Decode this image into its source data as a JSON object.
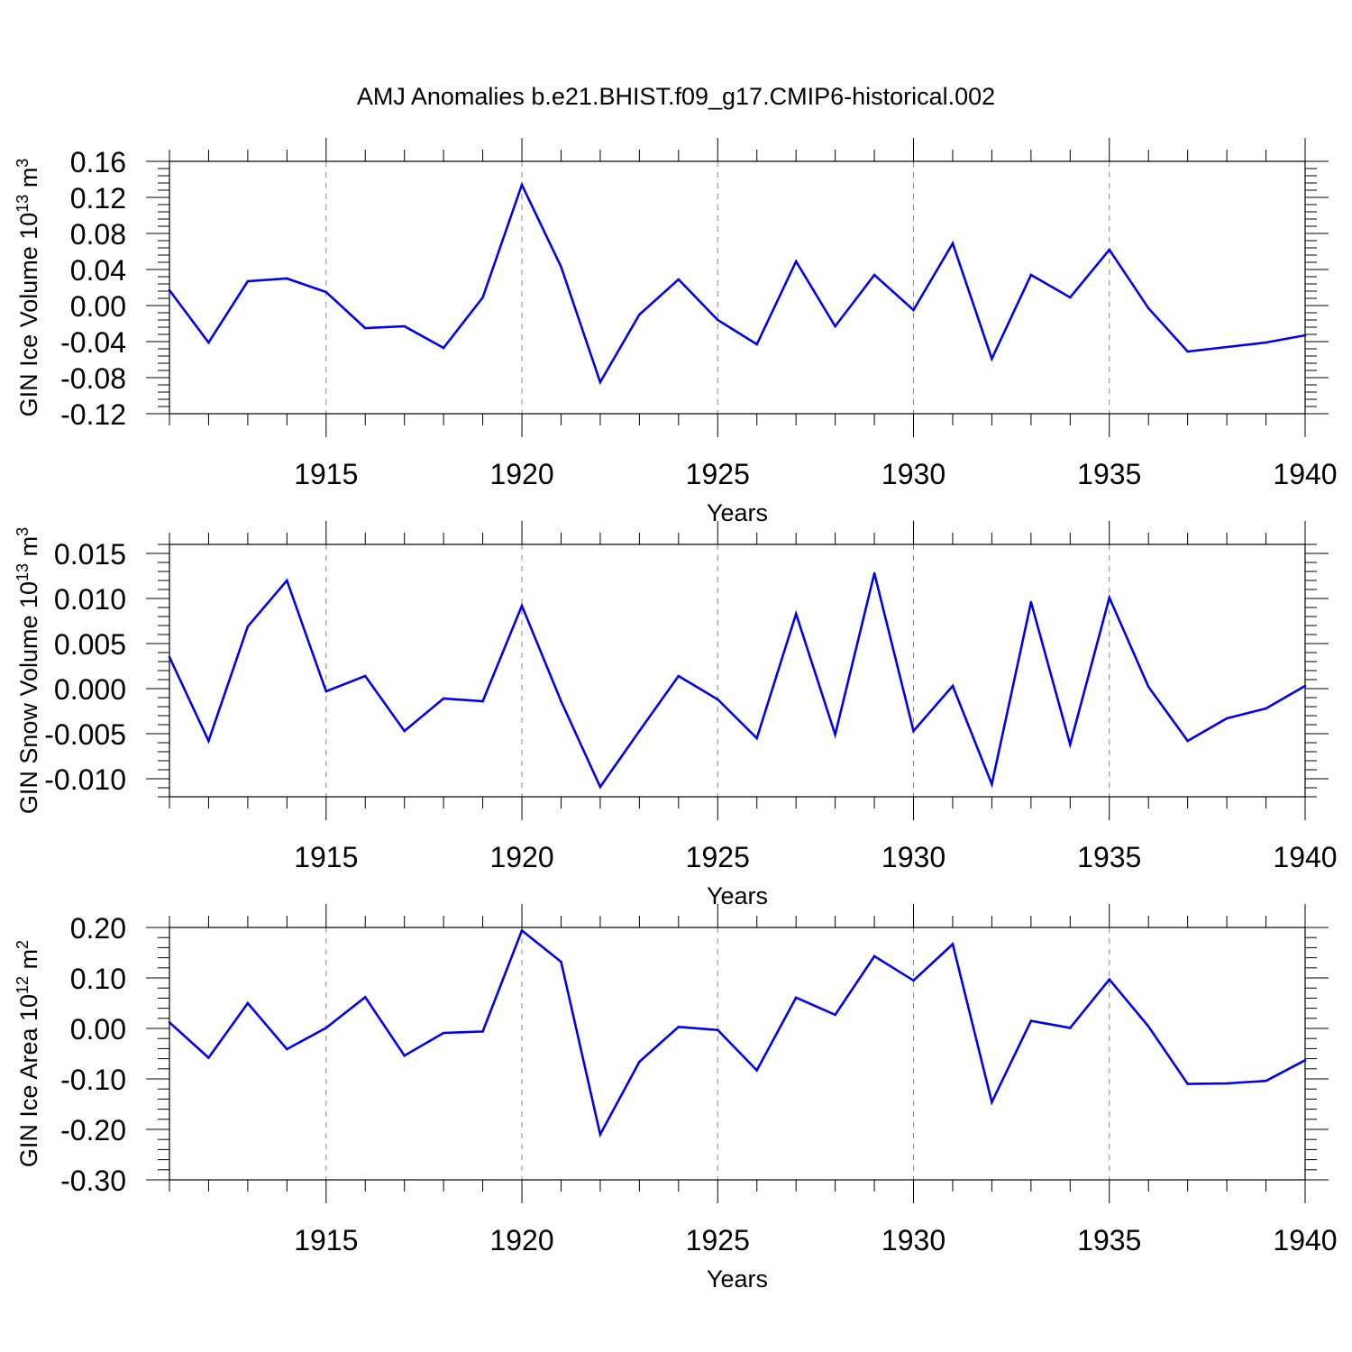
{
  "title": "AMJ Anomalies b.e21.BHIST.f09_g17.CMIP6-historical.002",
  "colors": {
    "line": "#0000ee",
    "axis": "#000000",
    "grid": "#888888"
  },
  "chart_data": [
    {
      "type": "line",
      "name": "ice-volume",
      "ylabel_main": "GIN Ice Volume 10",
      "ylabel_exp": "13",
      "ylabel_unit": " m",
      "ylabel_unit_exp": "3",
      "xlabel": "Years",
      "xlim": [
        1911,
        1940
      ],
      "ylim": [
        -0.12,
        0.16
      ],
      "yticks": [
        -0.12,
        -0.08,
        -0.04,
        0.0,
        0.04,
        0.08,
        0.12,
        0.16
      ],
      "ytick_labels": [
        "-0.12",
        "-0.08",
        "-0.04",
        "0.00",
        "0.04",
        "0.08",
        "0.12",
        "0.16"
      ],
      "xticks": [
        1915,
        1920,
        1925,
        1930,
        1935,
        1940
      ],
      "xtick_labels": [
        "1915",
        "1920",
        "1925",
        "1930",
        "1935",
        "1940"
      ],
      "x": [
        1911,
        1912,
        1913,
        1914,
        1915,
        1916,
        1917,
        1918,
        1919,
        1920,
        1921,
        1922,
        1923,
        1924,
        1925,
        1926,
        1927,
        1928,
        1929,
        1930,
        1931,
        1932,
        1933,
        1934,
        1935,
        1936,
        1937,
        1938,
        1939,
        1940
      ],
      "values": [
        0.017,
        -0.041,
        0.027,
        0.03,
        0.015,
        -0.025,
        -0.023,
        -0.047,
        0.009,
        0.134,
        0.043,
        -0.085,
        -0.01,
        0.029,
        -0.016,
        -0.043,
        0.049,
        -0.023,
        0.034,
        -0.005,
        0.069,
        -0.059,
        0.034,
        0.009,
        0.062,
        -0.003,
        -0.051,
        -0.046,
        -0.041,
        -0.033
      ]
    },
    {
      "type": "line",
      "name": "snow-volume",
      "ylabel_main": "GIN Snow Volume 10",
      "ylabel_exp": "13",
      "ylabel_unit": " m",
      "ylabel_unit_exp": "3",
      "xlabel": "Years",
      "xlim": [
        1911,
        1940
      ],
      "ylim": [
        -0.012,
        0.016
      ],
      "yticks": [
        -0.01,
        -0.005,
        0.0,
        0.005,
        0.01,
        0.015
      ],
      "ytick_labels": [
        "-0.010",
        "-0.005",
        "0.000",
        "0.005",
        "0.010",
        "0.015"
      ],
      "xticks": [
        1915,
        1920,
        1925,
        1930,
        1935,
        1940
      ],
      "xtick_labels": [
        "1915",
        "1920",
        "1925",
        "1930",
        "1935",
        "1940"
      ],
      "x": [
        1911,
        1912,
        1913,
        1914,
        1915,
        1916,
        1917,
        1918,
        1919,
        1920,
        1921,
        1922,
        1923,
        1924,
        1925,
        1926,
        1927,
        1928,
        1929,
        1930,
        1931,
        1932,
        1933,
        1934,
        1935,
        1936,
        1937,
        1938,
        1939,
        1940
      ],
      "values": [
        0.0035,
        -0.0058,
        0.0069,
        0.012,
        -0.0003,
        0.0014,
        -0.0047,
        -0.0011,
        -0.0014,
        0.0092,
        -0.0014,
        -0.0109,
        -0.0047,
        0.0014,
        -0.0012,
        -0.0055,
        0.0083,
        -0.0051,
        0.0128,
        -0.0047,
        0.0003,
        -0.0106,
        0.0096,
        -0.0062,
        0.0101,
        0.0002,
        -0.0058,
        -0.0033,
        -0.0022,
        0.0003
      ]
    },
    {
      "type": "line",
      "name": "ice-area",
      "ylabel_main": "GIN Ice Area 10",
      "ylabel_exp": "12",
      "ylabel_unit": " m",
      "ylabel_unit_exp": "2",
      "xlabel": "Years",
      "xlim": [
        1911,
        1940
      ],
      "ylim": [
        -0.3,
        0.2
      ],
      "yticks": [
        -0.3,
        -0.2,
        -0.1,
        0.0,
        0.1,
        0.2
      ],
      "ytick_labels": [
        "-0.30",
        "-0.20",
        "-0.10",
        "0.00",
        "0.10",
        "0.20"
      ],
      "xticks": [
        1915,
        1920,
        1925,
        1930,
        1935,
        1940
      ],
      "xtick_labels": [
        "1915",
        "1920",
        "1925",
        "1930",
        "1935",
        "1940"
      ],
      "x": [
        1911,
        1912,
        1913,
        1914,
        1915,
        1916,
        1917,
        1918,
        1919,
        1920,
        1921,
        1922,
        1923,
        1924,
        1925,
        1926,
        1927,
        1928,
        1929,
        1930,
        1931,
        1932,
        1933,
        1934,
        1935,
        1936,
        1937,
        1938,
        1939,
        1940
      ],
      "values": [
        0.012,
        -0.058,
        0.05,
        -0.041,
        0.001,
        0.062,
        -0.054,
        -0.009,
        -0.006,
        0.194,
        0.132,
        -0.21,
        -0.066,
        0.003,
        -0.003,
        -0.083,
        0.061,
        0.027,
        0.143,
        0.095,
        0.167,
        -0.146,
        0.015,
        0.001,
        0.097,
        0.004,
        -0.11,
        -0.109,
        -0.104,
        -0.063
      ]
    }
  ]
}
